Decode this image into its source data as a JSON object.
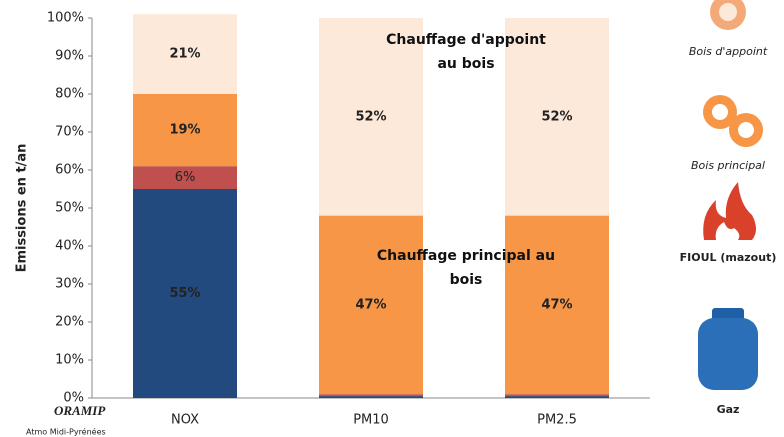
{
  "chart_data": {
    "type": "stacked_bar",
    "y_label": "Emissions en t/an",
    "categories": [
      "NOX",
      "PM10",
      "PM2.5"
    ],
    "series": [
      {
        "name": "Gaz",
        "color": "#234a7e",
        "values": [
          55,
          0.5,
          0.5
        ],
        "value_labels": [
          "55%",
          null,
          null
        ]
      },
      {
        "name": "FIOUL (mazout)",
        "color": "#c0504d",
        "values": [
          6,
          0.5,
          0.5
        ],
        "value_labels": [
          "6%",
          null,
          null
        ]
      },
      {
        "name": "Bois principal",
        "color": "#f79646",
        "values": [
          19,
          47,
          47
        ],
        "value_labels": [
          "19%",
          "47%",
          "47%"
        ]
      },
      {
        "name": "Bois d'appoint",
        "color": "#fde9d9",
        "values": [
          21,
          52,
          52
        ],
        "value_labels": [
          "21%",
          "52%",
          "52%"
        ]
      }
    ],
    "annotations": [
      "Chauffage d'appoint au bois",
      "Chauffage principal au bois"
    ],
    "ylim": [
      0,
      100
    ],
    "yticks": [
      {
        "value": 0,
        "label": "0%"
      },
      {
        "value": 10,
        "label": "10%"
      },
      {
        "value": 20,
        "label": "20%"
      },
      {
        "value": 30,
        "label": "30%"
      },
      {
        "value": 40,
        "label": "40%"
      },
      {
        "value": 50,
        "label": "50%"
      },
      {
        "value": 60,
        "label": "60%"
      },
      {
        "value": 70,
        "label": "70%"
      },
      {
        "value": 80,
        "label": "80%"
      },
      {
        "value": 90,
        "label": "90%"
      },
      {
        "value": 100,
        "label": "100%"
      }
    ],
    "logo": [
      "ORAMIP",
      "Atmo Midi-Pyrénées"
    ]
  }
}
